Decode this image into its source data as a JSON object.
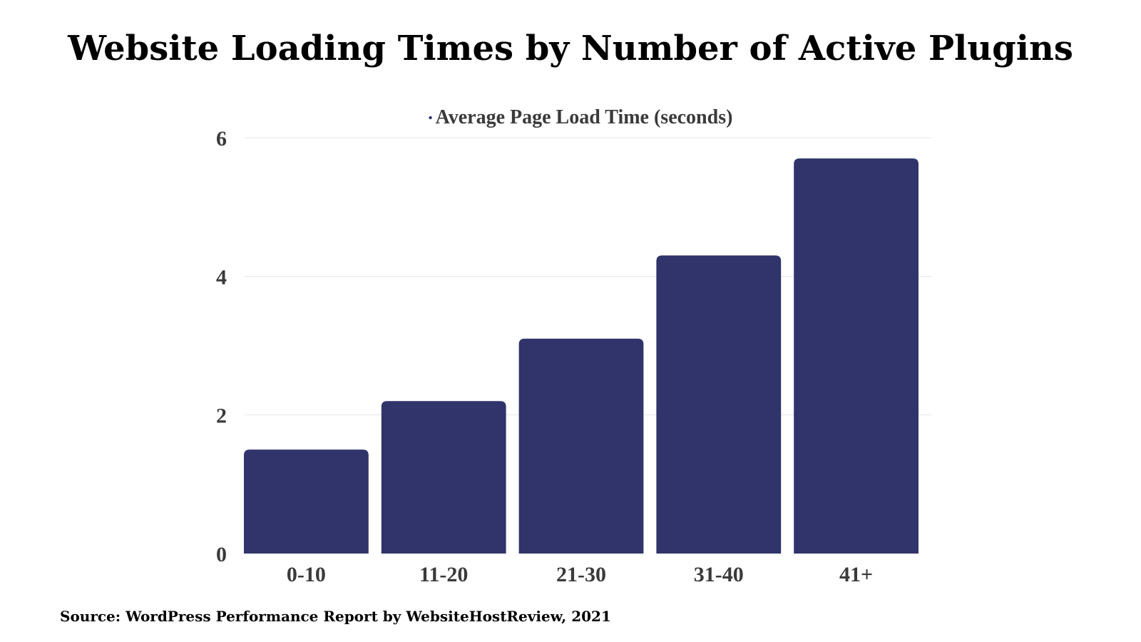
{
  "title": "Website Loading Times by Number of Active Plugins",
  "source": "Source: WordPress Performance Report by WebsiteHostReview, 2021",
  "colors": {
    "bar": "#30346b",
    "grid": "#e6e6e6",
    "text": "#3a3a3a"
  },
  "chart_data": {
    "type": "bar",
    "title": "Website Loading Times by Number of Active Plugins",
    "categories": [
      "0-10",
      "11-20",
      "21-30",
      "31-40",
      "41+"
    ],
    "series": [
      {
        "name": "Average Page Load Time (seconds)",
        "values": [
          1.5,
          2.2,
          3.1,
          4.3,
          5.7
        ]
      }
    ],
    "xlabel": "",
    "ylabel": "",
    "ylim": [
      0,
      6
    ],
    "yticks": [
      0,
      2,
      4,
      6
    ],
    "grid": true,
    "legend_position": "top-center"
  }
}
